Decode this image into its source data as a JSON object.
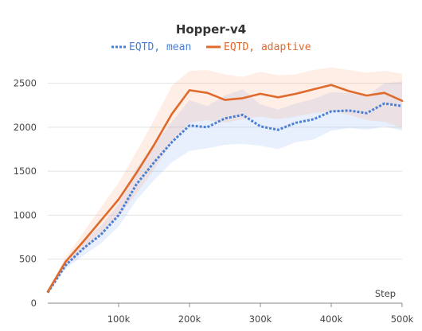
{
  "chart_data": {
    "type": "line",
    "title": "Hopper-v4",
    "xlabel": "Step",
    "ylabel": "",
    "xlim": [
      0,
      500000
    ],
    "ylim": [
      0,
      2650
    ],
    "x_ticks": [
      100000,
      200000,
      300000,
      400000,
      500000
    ],
    "x_tick_labels": [
      "100k",
      "200k",
      "300k",
      "400k",
      "500k"
    ],
    "y_ticks": [
      0,
      500,
      1000,
      1500,
      2000,
      2500
    ],
    "y_tick_labels": [
      "0",
      "500",
      "1000",
      "1500",
      "2000",
      "2500"
    ],
    "grid": "horizontal",
    "legend_position": "top",
    "x": [
      0,
      25000,
      50000,
      75000,
      100000,
      125000,
      150000,
      175000,
      200000,
      225000,
      250000,
      275000,
      300000,
      325000,
      350000,
      375000,
      400000,
      425000,
      450000,
      475000,
      500000
    ],
    "series": [
      {
        "name": "EQTD, mean",
        "color": "#4a7fd4",
        "style": "dotted",
        "values": [
          120,
          430,
          620,
          780,
          1000,
          1350,
          1600,
          1830,
          2020,
          2000,
          2100,
          2140,
          2010,
          1970,
          2050,
          2090,
          2180,
          2190,
          2160,
          2270,
          2240
        ],
        "lower": [
          100,
          390,
          540,
          680,
          870,
          1170,
          1400,
          1600,
          1730,
          1760,
          1800,
          1810,
          1790,
          1750,
          1830,
          1860,
          1960,
          1990,
          1970,
          2010,
          1960
        ],
        "upper": [
          140,
          470,
          700,
          880,
          1130,
          1530,
          1800,
          2060,
          2310,
          2240,
          2360,
          2430,
          2260,
          2200,
          2270,
          2320,
          2400,
          2390,
          2350,
          2500,
          2520
        ]
      },
      {
        "name": "EQTD, adaptive",
        "color": "#e06a2c",
        "style": "solid",
        "values": [
          130,
          470,
          700,
          940,
          1180,
          1480,
          1800,
          2150,
          2420,
          2390,
          2310,
          2330,
          2380,
          2340,
          2380,
          2430,
          2480,
          2410,
          2360,
          2390,
          2300
        ],
        "lower": [
          110,
          420,
          600,
          790,
          990,
          1240,
          1520,
          1830,
          2050,
          2080,
          2050,
          2090,
          2120,
          2090,
          2120,
          2160,
          2180,
          2140,
          2080,
          2060,
          1990
        ],
        "upper": [
          150,
          520,
          800,
          1090,
          1370,
          1720,
          2080,
          2470,
          2640,
          2650,
          2600,
          2570,
          2630,
          2590,
          2600,
          2650,
          2680,
          2650,
          2620,
          2640,
          2610
        ]
      }
    ]
  }
}
